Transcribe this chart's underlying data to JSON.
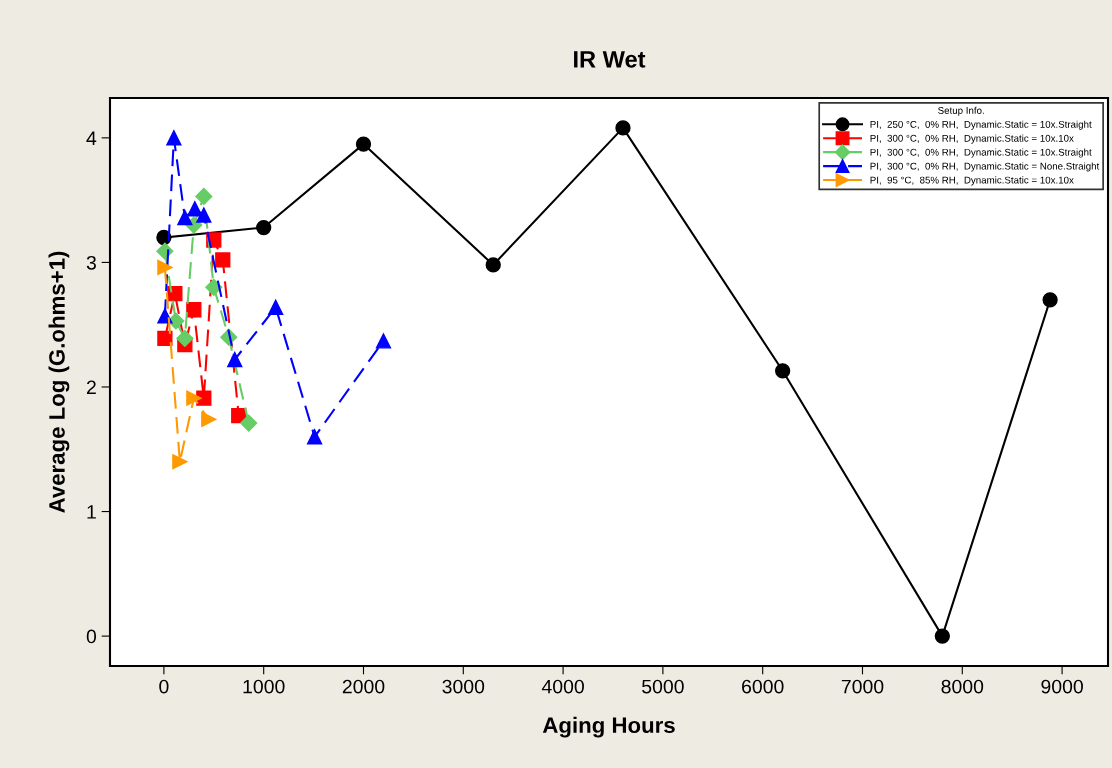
{
  "chart_data": {
    "type": "line",
    "title": "IR Wet",
    "xlabel": "Aging Hours",
    "ylabel": "Average Log (G.ohms+1)",
    "legend_title": "Setup Info.",
    "legend": "top right",
    "grid": false,
    "xlim": [
      -540,
      9460
    ],
    "xticks": [
      0,
      1000,
      2000,
      3000,
      4000,
      5000,
      6000,
      7000,
      8000,
      9000
    ],
    "ylim": [
      -0.24,
      4.32
    ],
    "yticks": [
      0,
      1,
      2,
      3,
      4
    ],
    "series": [
      {
        "name": "PI,  250 °C,  0% RH,  Dynamic.Static = 10x.Straight",
        "color": "#000000",
        "marker": "circle",
        "line_style": "solid",
        "x": [
          0,
          1000,
          2000,
          3300,
          4600,
          6200,
          7800,
          8880
        ],
        "values": [
          3.2,
          3.28,
          3.95,
          2.98,
          4.08,
          2.13,
          0,
          2.7
        ]
      },
      {
        "name": "PI,  300 °C,  0% RH,  Dynamic.Static = 10x.10x",
        "color": "#ff0000",
        "marker": "square",
        "line_style": "dashed",
        "x": [
          10,
          110,
          210,
          300,
          400,
          500,
          590,
          750
        ],
        "values": [
          2.39,
          2.75,
          2.34,
          2.62,
          1.91,
          3.18,
          3.02,
          1.77
        ]
      },
      {
        "name": "PI,  300 °C,  0% RH,  Dynamic.Static = 10x.Straight",
        "color": "#66cc66",
        "marker": "diamond",
        "line_style": "dashed",
        "x": [
          10,
          120,
          210,
          300,
          400,
          500,
          650,
          850
        ],
        "values": [
          3.09,
          2.53,
          2.39,
          3.3,
          3.53,
          2.8,
          2.4,
          1.71
        ]
      },
      {
        "name": "PI,  300 °C,  0% RH,  Dynamic.Static = None.Straight",
        "color": "#0000ff",
        "marker": "triangle",
        "line_style": "dashed",
        "x": [
          10,
          100,
          210,
          310,
          400,
          710,
          1120,
          1510,
          2200
        ],
        "values": [
          2.57,
          4.0,
          3.36,
          3.43,
          3.38,
          2.22,
          2.64,
          1.6,
          2.37
        ]
      },
      {
        "name": "PI,  95 °C,  85% RH,  Dynamic.Static = 10x.10x",
        "color": "#ff9900",
        "marker": "triangle_right",
        "line_style": "dashed",
        "x": [
          10,
          160,
          300,
          450
        ],
        "values": [
          2.96,
          1.4,
          1.91,
          1.74
        ]
      }
    ]
  }
}
